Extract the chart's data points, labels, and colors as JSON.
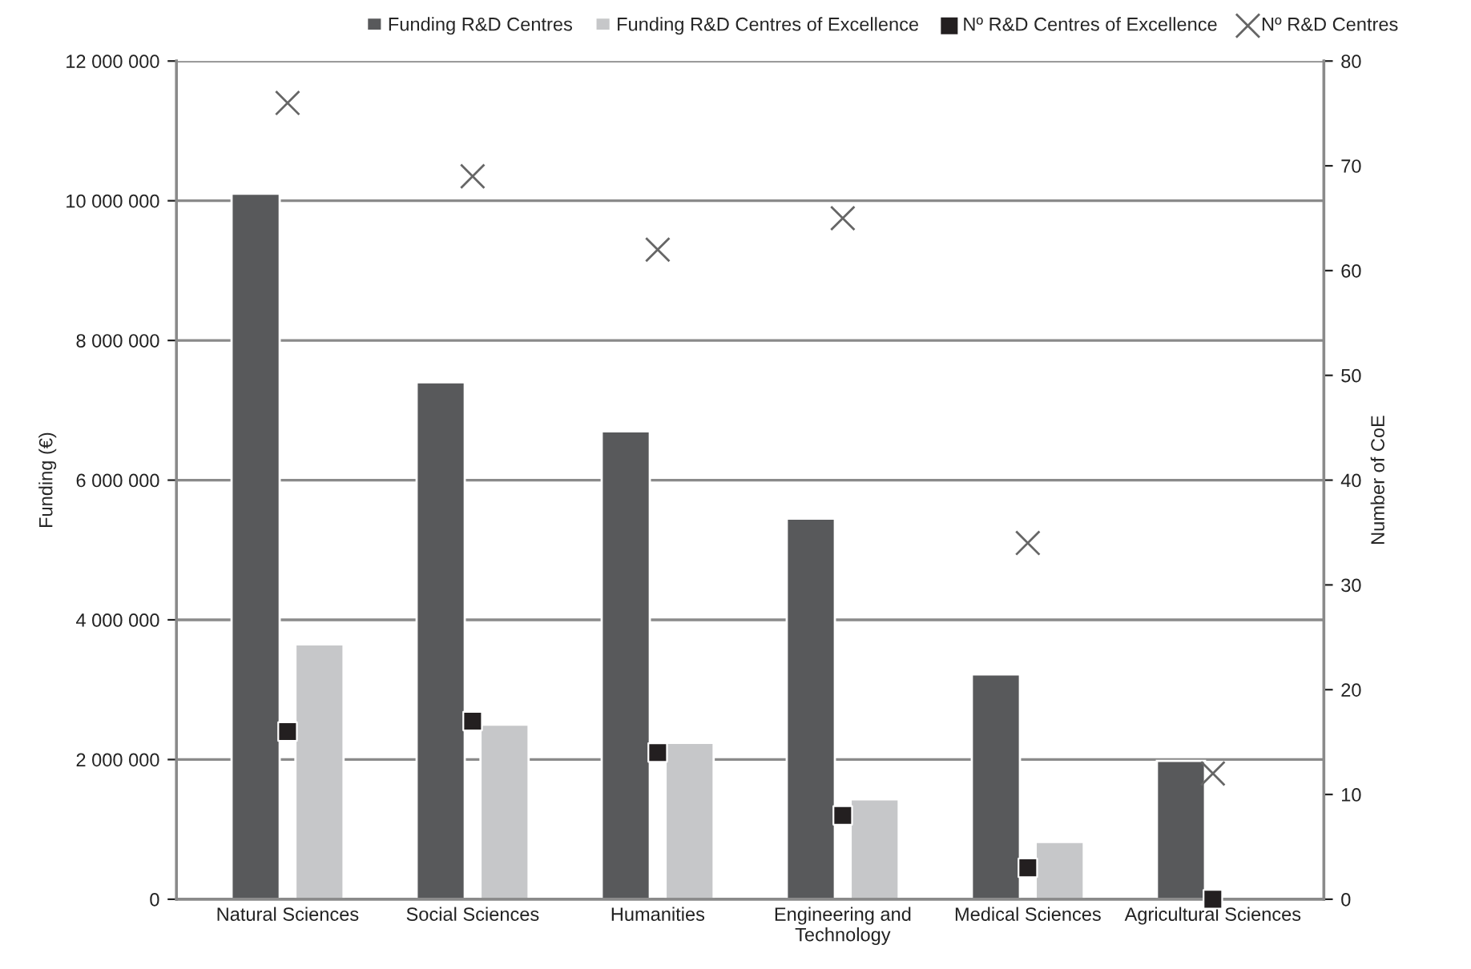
{
  "chart_data": {
    "type": "bar",
    "ylabel": "Funding (€)",
    "y2label": "Number of CoE",
    "categories": [
      "Natural Sciences",
      "Social Sciences",
      "Humanities",
      "Engineering and\nTechnology",
      "Medical Sciences",
      "Agricultural Sciences"
    ],
    "series": [
      {
        "name": "Funding R&D Centres",
        "color": "#58595b",
        "values": [
          10100000,
          7400000,
          6700000,
          5450000,
          3220000,
          1980000
        ]
      },
      {
        "name": "Funding R&D Centres of Excellence",
        "color": "#c6c7c9",
        "values": [
          3650000,
          2500000,
          2240000,
          1430000,
          820000,
          null
        ]
      },
      {
        "name": "Nº R&D Centres of Excellence",
        "type": "scatter",
        "axis": "y2",
        "marker": "square",
        "color": "#231f20",
        "values": [
          16,
          17,
          14,
          8,
          3,
          0
        ]
      },
      {
        "name": "Nº R&D Centres",
        "type": "scatter",
        "axis": "y2",
        "marker": "cross",
        "color": "#666666",
        "values": [
          76,
          69,
          62,
          65,
          34,
          12
        ]
      }
    ],
    "ylim": [
      0,
      12000000
    ],
    "yticks": [
      {
        "value": 0,
        "label": "0"
      },
      {
        "value": 2000000,
        "label": "2 000 000"
      },
      {
        "value": 4000000,
        "label": "4 000 000"
      },
      {
        "value": 6000000,
        "label": "6 000 000"
      },
      {
        "value": 8000000,
        "label": "8 000 000"
      },
      {
        "value": 10000000,
        "label": "10 000 000"
      },
      {
        "value": 12000000,
        "label": "12 000 000"
      }
    ],
    "y2lim": [
      0,
      80
    ],
    "y2ticks": [
      0,
      10,
      20,
      30,
      40,
      50,
      60,
      70,
      80
    ],
    "grid": "y",
    "legend": "top"
  }
}
